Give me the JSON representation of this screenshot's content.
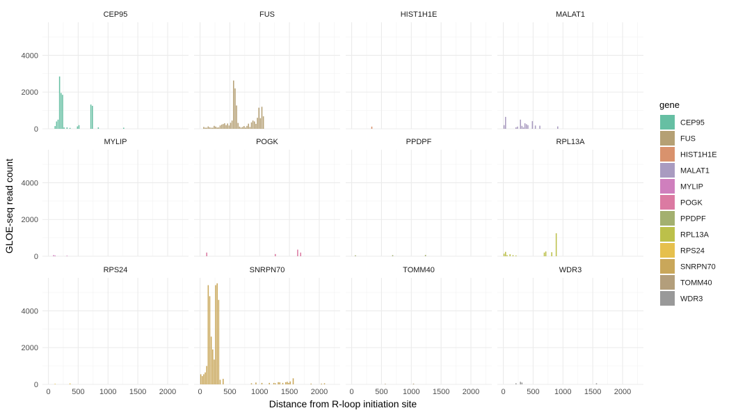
{
  "chart_data": {
    "type": "bar",
    "subtype": "faceted-histogram",
    "xlabel": "Distance from R-loop initiation site",
    "ylabel": "GLOE-seq read count",
    "xlim": [
      -100,
      2350
    ],
    "ylim": [
      0,
      5800
    ],
    "x_ticks": [
      0,
      500,
      1000,
      1500,
      2000
    ],
    "y_ticks": [
      0,
      2000,
      4000
    ],
    "bin_width": 25,
    "grid": true,
    "legend": {
      "title": "gene",
      "position": "right",
      "entries": [
        {
          "name": "CEP95",
          "color": "#66bfa3"
        },
        {
          "name": "FUS",
          "color": "#b5a074"
        },
        {
          "name": "HIST1H1E",
          "color": "#d9926d"
        },
        {
          "name": "MALAT1",
          "color": "#a99bc0"
        },
        {
          "name": "MYLIP",
          "color": "#cf7fbd"
        },
        {
          "name": "POGK",
          "color": "#db7aa2"
        },
        {
          "name": "PPDPF",
          "color": "#a3b06f"
        },
        {
          "name": "RPL13A",
          "color": "#bcc04a"
        },
        {
          "name": "RPS24",
          "color": "#e6c04d"
        },
        {
          "name": "SNRPN70",
          "color": "#c9a75a"
        },
        {
          "name": "TOMM40",
          "color": "#b39e7b"
        },
        {
          "name": "WDR3",
          "color": "#999999"
        }
      ]
    },
    "facets": [
      {
        "gene": "CEP95",
        "bars": [
          [
            100,
            150
          ],
          [
            125,
            400
          ],
          [
            150,
            500
          ],
          [
            175,
            2850
          ],
          [
            200,
            1950
          ],
          [
            225,
            1850
          ],
          [
            250,
            80
          ],
          [
            300,
            80
          ],
          [
            350,
            50
          ],
          [
            475,
            130
          ],
          [
            500,
            200
          ],
          [
            700,
            1320
          ],
          [
            725,
            1250
          ],
          [
            825,
            80
          ],
          [
            1250,
            60
          ]
        ]
      },
      {
        "gene": "FUS",
        "bars": [
          [
            50,
            100
          ],
          [
            75,
            60
          ],
          [
            100,
            60
          ],
          [
            125,
            130
          ],
          [
            150,
            80
          ],
          [
            175,
            60
          ],
          [
            200,
            60
          ],
          [
            225,
            160
          ],
          [
            250,
            120
          ],
          [
            275,
            70
          ],
          [
            300,
            80
          ],
          [
            325,
            180
          ],
          [
            350,
            230
          ],
          [
            375,
            260
          ],
          [
            400,
            300
          ],
          [
            425,
            200
          ],
          [
            450,
            290
          ],
          [
            475,
            180
          ],
          [
            500,
            330
          ],
          [
            525,
            450
          ],
          [
            550,
            2630
          ],
          [
            575,
            2200
          ],
          [
            600,
            1270
          ],
          [
            625,
            320
          ],
          [
            650,
            120
          ],
          [
            675,
            70
          ],
          [
            700,
            100
          ],
          [
            725,
            150
          ],
          [
            750,
            70
          ],
          [
            775,
            160
          ],
          [
            800,
            280
          ],
          [
            825,
            100
          ],
          [
            850,
            350
          ],
          [
            875,
            450
          ],
          [
            900,
            400
          ],
          [
            925,
            270
          ],
          [
            950,
            600
          ],
          [
            975,
            1150
          ],
          [
            1000,
            580
          ],
          [
            1025,
            1200
          ],
          [
            1050,
            680
          ]
        ]
      },
      {
        "gene": "HIST1H1E",
        "bars": [
          [
            325,
            120
          ]
        ]
      },
      {
        "gene": "MALAT1",
        "bars": [
          [
            0,
            200
          ],
          [
            25,
            650
          ],
          [
            200,
            80
          ],
          [
            225,
            120
          ],
          [
            275,
            500
          ],
          [
            300,
            160
          ],
          [
            325,
            80
          ],
          [
            350,
            300
          ],
          [
            375,
            250
          ],
          [
            400,
            200
          ],
          [
            475,
            420
          ],
          [
            525,
            180
          ],
          [
            600,
            170
          ],
          [
            900,
            130
          ]
        ]
      },
      {
        "gene": "MYLIP",
        "bars": [
          [
            75,
            60
          ],
          [
            100,
            40
          ],
          [
            300,
            30
          ]
        ]
      },
      {
        "gene": "POGK",
        "bars": [
          [
            100,
            200
          ],
          [
            1250,
            120
          ],
          [
            1625,
            360
          ],
          [
            1675,
            200
          ]
        ]
      },
      {
        "gene": "PPDPF",
        "bars": [
          [
            50,
            50
          ],
          [
            675,
            60
          ],
          [
            1225,
            70
          ]
        ]
      },
      {
        "gene": "RPL13A",
        "bars": [
          [
            0,
            140
          ],
          [
            25,
            240
          ],
          [
            50,
            60
          ],
          [
            100,
            110
          ],
          [
            150,
            60
          ],
          [
            200,
            40
          ],
          [
            675,
            200
          ],
          [
            700,
            260
          ],
          [
            800,
            220
          ],
          [
            875,
            1250
          ]
        ]
      },
      {
        "gene": "RPS24",
        "bars": [
          [
            100,
            30
          ],
          [
            350,
            50
          ]
        ]
      },
      {
        "gene": "SNRPN70",
        "bars": [
          [
            0,
            550
          ],
          [
            25,
            450
          ],
          [
            50,
            550
          ],
          [
            75,
            650
          ],
          [
            100,
            1000
          ],
          [
            125,
            5400
          ],
          [
            150,
            4800
          ],
          [
            175,
            2600
          ],
          [
            200,
            1900
          ],
          [
            225,
            1350
          ],
          [
            250,
            5400
          ],
          [
            275,
            5500
          ],
          [
            300,
            4600
          ],
          [
            325,
            250
          ],
          [
            375,
            300
          ],
          [
            850,
            60
          ],
          [
            925,
            100
          ],
          [
            1025,
            80
          ],
          [
            1150,
            80
          ],
          [
            1225,
            80
          ],
          [
            1250,
            60
          ],
          [
            1300,
            120
          ],
          [
            1325,
            110
          ],
          [
            1375,
            80
          ],
          [
            1425,
            120
          ],
          [
            1450,
            140
          ],
          [
            1475,
            80
          ],
          [
            1500,
            160
          ],
          [
            1550,
            330
          ],
          [
            1850,
            40
          ],
          [
            2025,
            40
          ],
          [
            2075,
            60
          ]
        ]
      },
      {
        "gene": "TOMM40",
        "bars": [
          [
            550,
            30
          ],
          [
            1025,
            40
          ]
        ]
      },
      {
        "gene": "WDR3",
        "bars": [
          [
            200,
            60
          ],
          [
            275,
            140
          ],
          [
            300,
            100
          ],
          [
            1550,
            60
          ]
        ]
      }
    ]
  }
}
